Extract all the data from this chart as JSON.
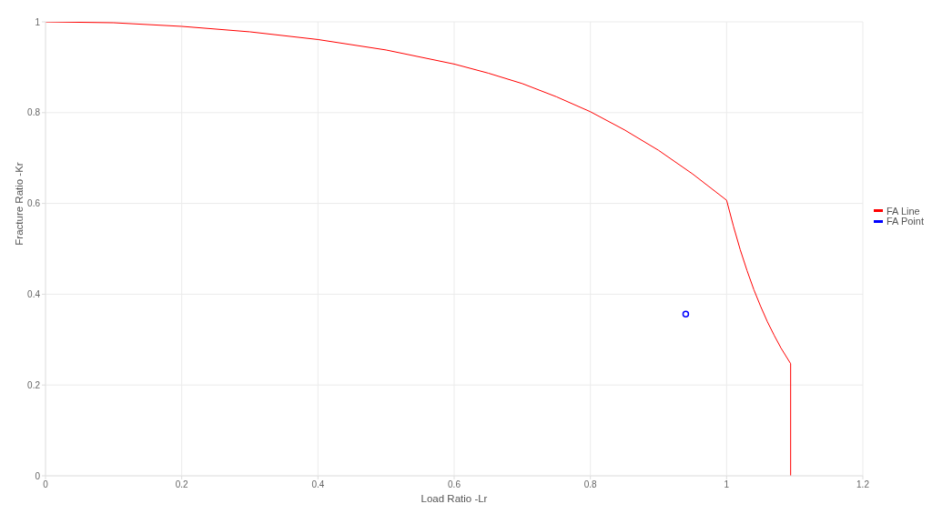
{
  "chart_data": {
    "type": "line",
    "xlabel": "Load Ratio -Lr",
    "ylabel": "Fracture Ratio -Kr",
    "xlim": [
      0,
      1.2
    ],
    "xticks": [
      0,
      0.2,
      0.4,
      0.6,
      0.8,
      1,
      1.2
    ],
    "ylim": [
      0,
      1
    ],
    "yticks": [
      0,
      0.2,
      0.4,
      0.6,
      0.8,
      1
    ],
    "grid": true,
    "legend": "right",
    "series": [
      {
        "name": "FA Line",
        "type": "line",
        "color": "#ff0000",
        "marker": "none",
        "x": [
          0,
          0.1,
          0.2,
          0.3,
          0.4,
          0.5,
          0.6,
          0.65,
          0.7,
          0.75,
          0.8,
          0.85,
          0.9,
          0.95,
          1,
          1.01,
          1.02,
          1.03,
          1.04,
          1.05,
          1.06,
          1.07,
          1.08,
          1.094,
          1.094
        ],
        "values": [
          1,
          0.998,
          0.99,
          0.978,
          0.961,
          0.938,
          0.907,
          0.887,
          0.864,
          0.835,
          0.802,
          0.762,
          0.717,
          0.665,
          0.607,
          0.55,
          0.498,
          0.452,
          0.41,
          0.373,
          0.339,
          0.309,
          0.281,
          0.247,
          0
        ]
      },
      {
        "name": "FA Point",
        "type": "scatter",
        "color": "#0000ff",
        "marker": "circle",
        "x": [
          0.94
        ],
        "values": [
          0.356
        ]
      }
    ]
  }
}
